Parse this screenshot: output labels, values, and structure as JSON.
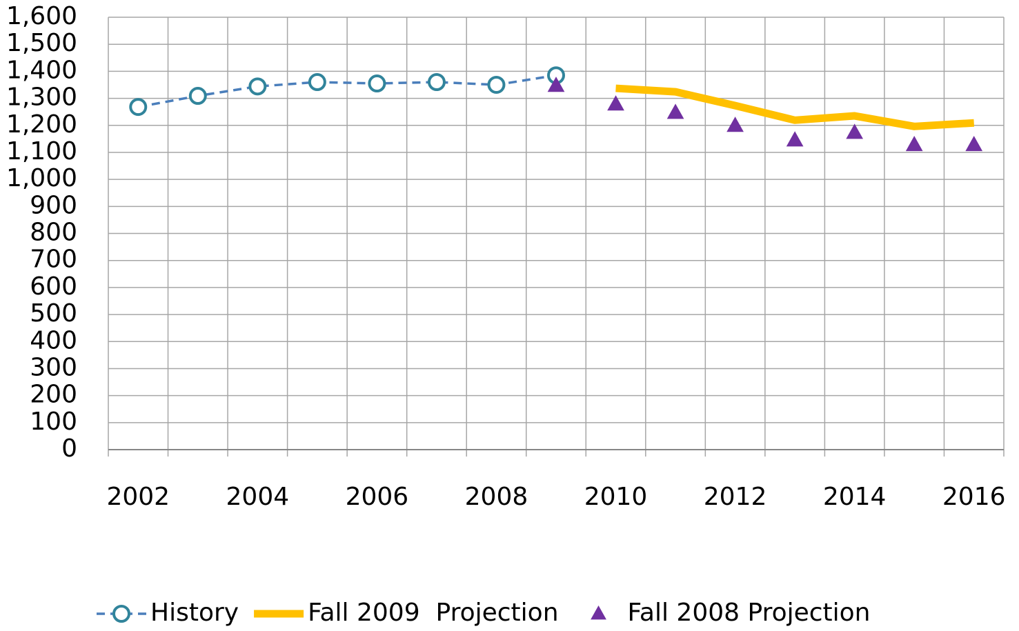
{
  "chart_data": {
    "type": "line",
    "categories": [
      "2002",
      null,
      "2004",
      null,
      "2006",
      null,
      "2008",
      null,
      "2010",
      null,
      "2012",
      null,
      "2014",
      null,
      "2016"
    ],
    "series": [
      {
        "name": "History",
        "color": "#31849b",
        "line_color": "#4a7ebb",
        "line_style": "dashed",
        "marker": "circle",
        "values": [
          1268,
          1309,
          1344,
          1360,
          1355,
          1360,
          1350,
          1385,
          null,
          null,
          null,
          null,
          null,
          null,
          null
        ]
      },
      {
        "name": "Fall 2009  Projection",
        "color": "#ffc000",
        "line_style": "solid",
        "marker": "none",
        "values": [
          null,
          null,
          null,
          null,
          null,
          null,
          null,
          null,
          1337,
          1324,
          1273,
          1219,
          1235,
          1196,
          1209
        ]
      },
      {
        "name": "Fall 2008 Projection",
        "color": "#7030a0",
        "line_style": "none",
        "marker": "triangle",
        "values": [
          null,
          null,
          null,
          null,
          null,
          null,
          null,
          1347,
          1278,
          1247,
          1199,
          1145,
          1173,
          1128,
          1128
        ]
      }
    ],
    "ylim": [
      0,
      1600
    ],
    "yticks": [
      0,
      100,
      200,
      300,
      400,
      500,
      600,
      700,
      800,
      900,
      {
        "value": 1000,
        "label": "1,000"
      },
      {
        "value": 1100,
        "label": "1,100"
      },
      {
        "value": 1200,
        "label": "1,200"
      },
      {
        "value": 1300,
        "label": "1,300"
      },
      {
        "value": 1400,
        "label": "1,400"
      },
      {
        "value": 1500,
        "label": "1,500"
      },
      {
        "value": 1600,
        "label": "1,600"
      }
    ],
    "grid": true,
    "legend": "bottom"
  }
}
